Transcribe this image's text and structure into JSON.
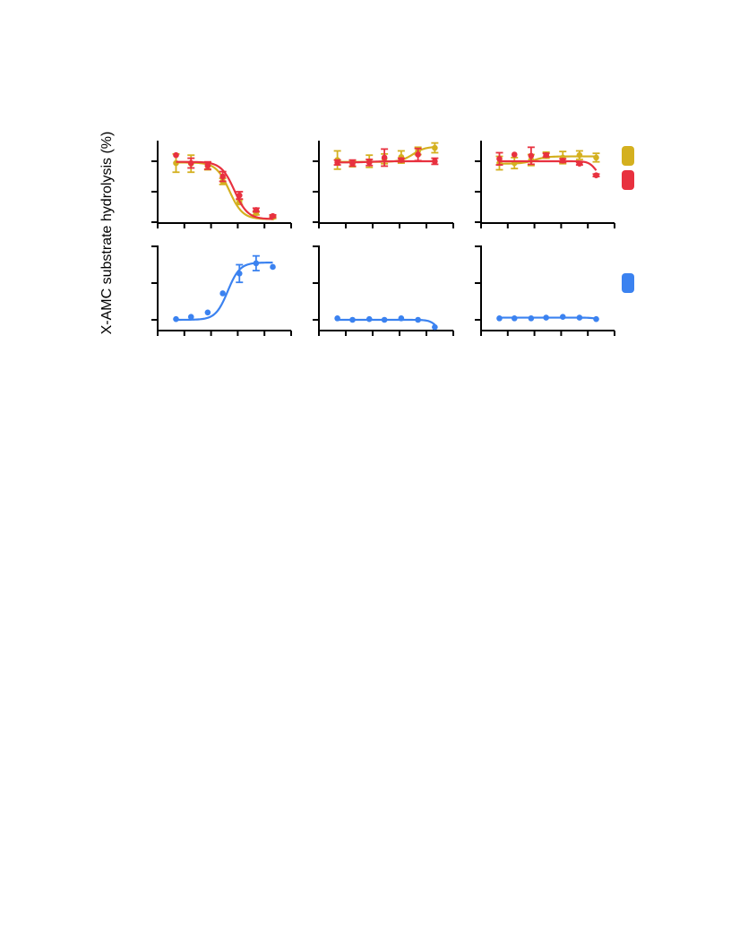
{
  "figure": {
    "ylabel": "X-AMC substrate hydrolysis (%)"
  },
  "colors": {
    "gold": "#d4b01f",
    "red": "#e8313f",
    "blue": "#3b82f0"
  },
  "legend": {
    "swatches": [
      "gold",
      "red",
      "blue"
    ]
  },
  "chart_data": [
    {
      "type": "line",
      "panel": "top-left",
      "xlim": [
        0,
        8
      ],
      "ylim": [
        0,
        100
      ],
      "yticks": [
        0,
        50,
        100
      ],
      "xticks": [
        0,
        1.6,
        3.2,
        4.8,
        6.4,
        8
      ],
      "series": [
        {
          "color": "gold",
          "x": [
            1.1,
            2.0,
            3.0,
            3.9,
            4.9,
            5.9,
            6.9
          ],
          "y": [
            97,
            96,
            92,
            67,
            33,
            15,
            8
          ],
          "err": [
            15,
            14,
            6,
            5,
            4,
            3,
            2
          ],
          "fit": {
            "top": 98,
            "bottom": 5,
            "x50": 4.3,
            "slope": -1.1
          }
        },
        {
          "color": "red",
          "x": [
            1.1,
            2.0,
            3.0,
            3.9,
            4.9,
            5.9,
            6.9
          ],
          "y": [
            110,
            97,
            93,
            75,
            44,
            20,
            10
          ],
          "err": [
            0,
            8,
            6,
            8,
            6,
            3,
            2
          ],
          "fit": {
            "top": 99,
            "bottom": 5,
            "x50": 4.6,
            "slope": -1.1
          }
        }
      ]
    },
    {
      "type": "line",
      "panel": "top-middle",
      "xlim": [
        0,
        8
      ],
      "ylim": [
        0,
        100
      ],
      "yticks": [
        0,
        50,
        100
      ],
      "xticks": [
        0,
        1.6,
        3.2,
        4.8,
        6.4,
        8
      ],
      "series": [
        {
          "color": "gold",
          "x": [
            1.1,
            2.0,
            3.0,
            3.9,
            4.9,
            5.9,
            6.9
          ],
          "y": [
            102,
            96,
            100,
            104,
            107,
            117,
            122
          ],
          "err": [
            15,
            5,
            10,
            8,
            10,
            6,
            8
          ],
          "fit": {
            "top": 124,
            "bottom": 99,
            "x50": 5.6,
            "slope": 1.2
          }
        },
        {
          "color": "red",
          "x": [
            1.1,
            2.0,
            3.0,
            3.9,
            4.9,
            5.9,
            6.9
          ],
          "y": [
            98,
            97,
            98,
            106,
            102,
            111,
            100
          ],
          "err": [
            4,
            5,
            5,
            14,
            3,
            10,
            5
          ],
          "fit": {
            "top": 100,
            "bottom": 98,
            "x50": 3.0,
            "slope": 1.0
          }
        }
      ]
    },
    {
      "type": "line",
      "panel": "top-right",
      "xlim": [
        0,
        8
      ],
      "ylim": [
        0,
        100
      ],
      "yticks": [
        0,
        50,
        100
      ],
      "xticks": [
        0,
        1.6,
        3.2,
        4.8,
        6.4,
        8
      ],
      "series": [
        {
          "color": "gold",
          "x": [
            1.1,
            2.0,
            3.0,
            3.9,
            4.9,
            5.9,
            6.9
          ],
          "y": [
            97,
            97,
            102,
            110,
            106,
            110,
            106
          ],
          "err": [
            11,
            9,
            9,
            5,
            10,
            7,
            7
          ],
          "fit": {
            "top": 108,
            "bottom": 96,
            "x50": 3.2,
            "slope": 1.2
          }
        },
        {
          "color": "red",
          "x": [
            1.1,
            2.0,
            3.0,
            3.9,
            4.9,
            5.9,
            6.9
          ],
          "y": [
            104,
            111,
            109,
            110,
            101,
            96,
            77
          ],
          "err": [
            10,
            0,
            14,
            3,
            3,
            2,
            2
          ],
          "fit": {
            "top": 100,
            "bottom": 70,
            "x50": 6.9,
            "slope": -2.0
          }
        }
      ]
    },
    {
      "type": "line",
      "panel": "bottom-left",
      "xlim": [
        0,
        8
      ],
      "ylim": [
        0,
        100
      ],
      "yticks": [
        0,
        50,
        100
      ],
      "xticks": [
        0,
        1.6,
        3.2,
        4.8,
        6.4,
        8
      ],
      "series": [
        {
          "color": "blue",
          "x": [
            1.1,
            2.0,
            3.0,
            3.9,
            4.9,
            5.9,
            6.9
          ],
          "y": [
            1,
            4,
            10,
            36,
            63,
            77,
            72
          ],
          "err": [
            0,
            0,
            0,
            0,
            12,
            10,
            0
          ],
          "fit": {
            "top": 78,
            "bottom": 0,
            "x50": 4.2,
            "slope": 1.2
          }
        }
      ]
    },
    {
      "type": "line",
      "panel": "bottom-middle",
      "xlim": [
        0,
        8
      ],
      "ylim": [
        0,
        100
      ],
      "yticks": [
        0,
        50,
        100
      ],
      "xticks": [
        0,
        1.6,
        3.2,
        4.8,
        6.4,
        8
      ],
      "series": [
        {
          "color": "blue",
          "x": [
            1.1,
            2.0,
            3.0,
            3.9,
            4.9,
            5.9,
            6.9
          ],
          "y": [
            2,
            0,
            1,
            0,
            2,
            0,
            -10
          ],
          "err": [
            0,
            0,
            0,
            0,
            0,
            0,
            0
          ],
          "fit": {
            "top": 0,
            "bottom": -30,
            "x50": 7.2,
            "slope": -1.8
          }
        }
      ]
    },
    {
      "type": "line",
      "panel": "bottom-right",
      "xlim": [
        0,
        8
      ],
      "ylim": [
        0,
        100
      ],
      "yticks": [
        0,
        50,
        100
      ],
      "xticks": [
        0,
        1.6,
        3.2,
        4.8,
        6.4,
        8
      ],
      "series": [
        {
          "color": "blue",
          "x": [
            1.1,
            2.0,
            3.0,
            3.9,
            4.9,
            5.9,
            6.9
          ],
          "y": [
            2,
            2,
            2,
            3,
            4,
            3,
            1
          ],
          "err": [
            0,
            0,
            0,
            0,
            0,
            0,
            0
          ],
          "fit": {
            "top": 3,
            "bottom": 1,
            "x50": 6.8,
            "slope": -2.0
          }
        }
      ]
    }
  ]
}
